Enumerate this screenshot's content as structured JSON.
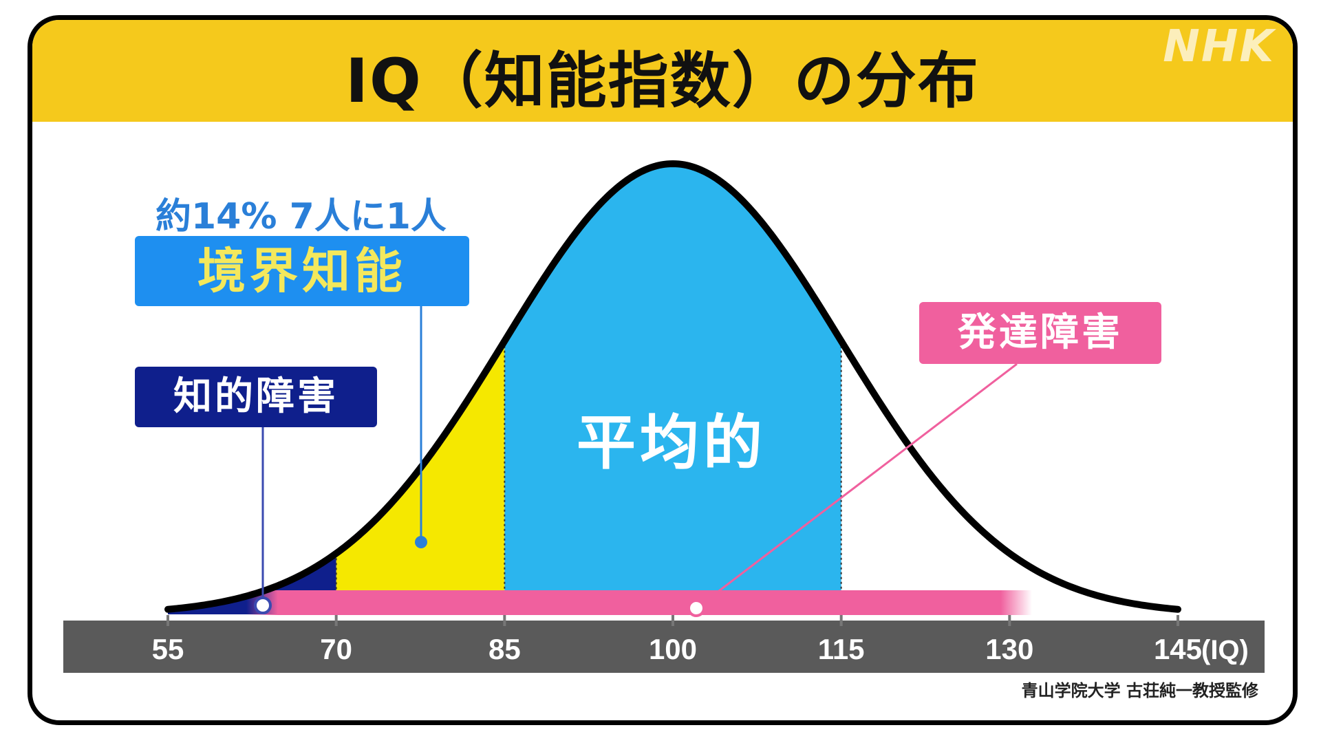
{
  "logo": "NHK",
  "title": "IQ（知能指数）の分布",
  "credit": "青山学院大学 古荘純一教授監修",
  "chart_data": {
    "type": "area",
    "distribution": "normal",
    "mean": 100,
    "sd": 15,
    "x_ticks": [
      55,
      70,
      85,
      100,
      115,
      130,
      145
    ],
    "x_unit": "(IQ)",
    "xlim": [
      55,
      145
    ],
    "regions": [
      {
        "name": "知的障害",
        "from": 55,
        "to": 70,
        "color": "#0f1f8c"
      },
      {
        "name": "境界知能",
        "from": 70,
        "to": 85,
        "color": "#f5e800",
        "note": "約14% 7人に1人"
      },
      {
        "name": "平均的",
        "from": 85,
        "to": 115,
        "color": "#2bb5ee"
      }
    ],
    "developmental_disorder_band": {
      "name": "発達障害",
      "from": 62,
      "to": 132,
      "color": "#f0609e"
    },
    "labels": {
      "borderline": "境界知能",
      "borderline_pct": "約14% 7人に1人",
      "intellectual": "知的障害",
      "average": "平均的",
      "developmental": "発達障害"
    }
  },
  "colors": {
    "header": "#f5c91c",
    "axis_bar": "#5a5a5a",
    "curve": "#000000",
    "connector_borderline": "#2a7fd8",
    "connector_intellectual": "#3a4ab0",
    "connector_developmental": "#f0609e"
  }
}
